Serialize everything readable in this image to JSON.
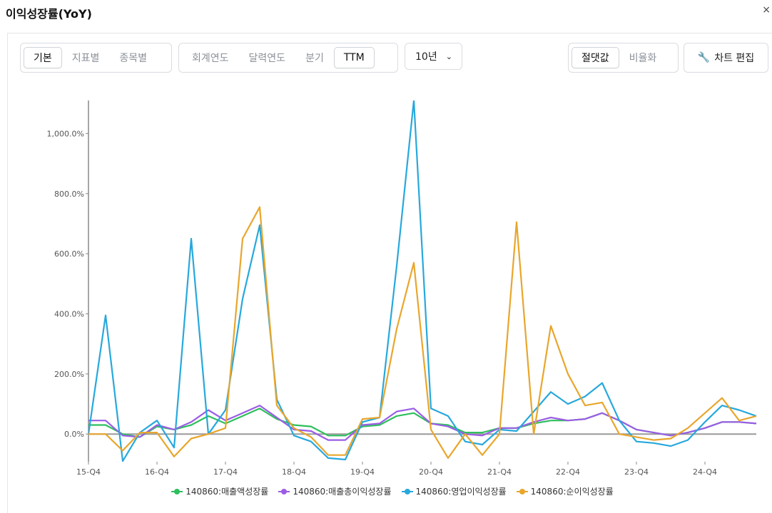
{
  "header": {
    "title": "이익성장률(YoY)",
    "close_label": "×"
  },
  "toolbar": {
    "view_group": [
      "기본",
      "지표별",
      "종목별"
    ],
    "view_active": 0,
    "period_group": [
      "회계연도",
      "달력연도",
      "분기",
      "TTM"
    ],
    "period_active": 3,
    "range_value": "10년",
    "scale_group": [
      "절댓값",
      "비율화"
    ],
    "scale_active": 0,
    "edit_label": "차트 편집"
  },
  "chart_data": {
    "type": "line",
    "title": "",
    "xlabel": "",
    "ylabel": "",
    "ylim": [
      -92,
      1110
    ],
    "yticks": [
      0,
      200,
      400,
      600,
      800,
      1000
    ],
    "ytick_labels": [
      "0.0%",
      "200.0%",
      "400.0%",
      "600.0%",
      "800.0%",
      "1,000.0%"
    ],
    "x_tick_labels": [
      "15-Q4",
      "16-Q4",
      "17-Q4",
      "18-Q4",
      "19-Q4",
      "20-Q4",
      "21-Q4",
      "22-Q4",
      "23-Q4",
      "24-Q4"
    ],
    "x_tick_index": [
      0,
      4,
      8,
      12,
      16,
      20,
      24,
      28,
      32,
      36
    ],
    "n_points": 40,
    "grid": false,
    "legend_position": "bottom",
    "series": [
      {
        "name": "140860:매출액성장률",
        "color": "#2fbf5e",
        "values": [
          30,
          30,
          0,
          -10,
          25,
          15,
          30,
          60,
          35,
          60,
          85,
          50,
          30,
          25,
          -5,
          -5,
          25,
          30,
          60,
          70,
          35,
          30,
          5,
          5,
          20,
          20,
          35,
          45,
          45,
          50,
          70,
          45,
          15,
          5,
          -5,
          5,
          20,
          40,
          40,
          35
        ]
      },
      {
        "name": "140860:매출총이익성장률",
        "color": "#9b5de5",
        "values": [
          45,
          45,
          -5,
          -10,
          30,
          15,
          40,
          80,
          45,
          70,
          95,
          55,
          15,
          10,
          -20,
          -20,
          30,
          35,
          75,
          85,
          35,
          25,
          0,
          -5,
          20,
          20,
          40,
          55,
          45,
          50,
          70,
          45,
          15,
          5,
          -5,
          5,
          20,
          40,
          40,
          35
        ]
      },
      {
        "name": "140860:영업이익성장률",
        "color": "#27a8dc",
        "values": [
          0,
          395,
          -90,
          5,
          45,
          -45,
          650,
          0,
          80,
          450,
          695,
          115,
          -5,
          -25,
          -80,
          -85,
          40,
          55,
          560,
          1110,
          85,
          60,
          -25,
          -35,
          15,
          10,
          75,
          140,
          100,
          125,
          170,
          45,
          -25,
          -30,
          -40,
          -20,
          40,
          95,
          80,
          60
        ]
      },
      {
        "name": "140860:순이익성장률",
        "color": "#e8a62c",
        "values": [
          0,
          0,
          -55,
          5,
          5,
          -75,
          -15,
          0,
          20,
          650,
          755,
          95,
          20,
          -10,
          -70,
          -70,
          50,
          55,
          350,
          570,
          15,
          -80,
          0,
          -70,
          0,
          705,
          0,
          360,
          200,
          95,
          105,
          0,
          -10,
          -20,
          -15,
          20,
          70,
          120,
          45,
          60
        ]
      }
    ]
  }
}
